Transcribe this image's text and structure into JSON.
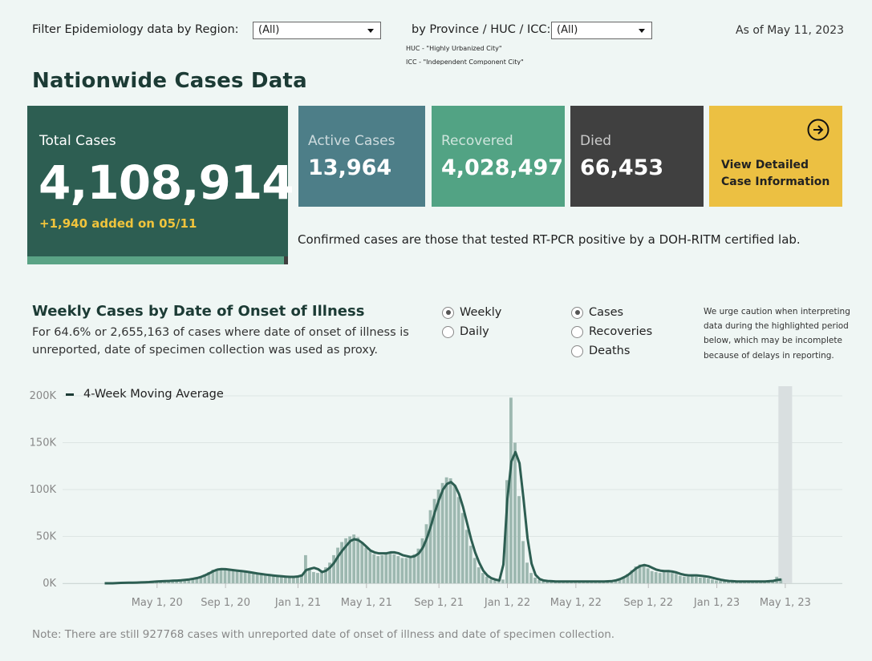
{
  "filters": {
    "region_label": "Filter Epidemiology data by Region:",
    "region_value": "(All)",
    "province_label": "by Province / HUC / ICC:",
    "province_value": "(All)",
    "huc_note": "HUC - \"Highly Urbanized City\"",
    "icc_note": "ICC - \"Independent Component City\""
  },
  "as_of": "As of May 11, 2023",
  "page_title": "Nationwide Cases Data",
  "total": {
    "label": "Total Cases",
    "value": "4,108,914",
    "added": "+1,940 added on 05/11"
  },
  "cards": [
    {
      "label": "Active Cases",
      "value": "13,964",
      "color": "#4d7e88"
    },
    {
      "label": "Recovered",
      "value": "4,028,497",
      "color": "#52a384"
    },
    {
      "label": "Died",
      "value": "66,453",
      "color": "#404040"
    }
  ],
  "cta": {
    "line1": "View Detailed",
    "line2": "Case Information",
    "icon": "arrow-right-circle-icon",
    "color": "#ecc042"
  },
  "confirmed_note": "Confirmed cases are those that tested RT-PCR positive by a DOH-RITM certified lab.",
  "chart_section": {
    "title": "Weekly Cases by Date of Onset of Illness",
    "subtitle": "For 64.6% or 2,655,163 of cases where date of onset of illness is unreported, date of specimen collection was used as proxy.",
    "period_options": [
      {
        "label": "Weekly",
        "selected": true
      },
      {
        "label": "Daily",
        "selected": false
      }
    ],
    "metric_options": [
      {
        "label": "Cases",
        "selected": true
      },
      {
        "label": "Recoveries",
        "selected": false
      },
      {
        "label": "Deaths",
        "selected": false
      }
    ],
    "caution": "We urge caution when interpreting data during the highlighted period below, which may be incomplete because of delays in reporting.",
    "legend": "4-Week Moving Average",
    "footnote": "Note: There are still 927768 cases with unreported date of onset of illness and date of specimen collection."
  },
  "chart_data": {
    "type": "bar",
    "title": "Weekly Cases by Date of Onset of Illness",
    "xlabel": "",
    "ylabel": "",
    "ylim": [
      0,
      200000
    ],
    "yticks": [
      "0K",
      "50K",
      "100K",
      "150K",
      "200K"
    ],
    "ytick_values": [
      0,
      50000,
      100000,
      150000,
      200000
    ],
    "xticks": [
      "May 1, 20",
      "Sep 1, 20",
      "Jan 1, 21",
      "May 1, 21",
      "Sep 1, 21",
      "Jan 1, 22",
      "May 1, 22",
      "Sep 1, 22",
      "Jan 1, 23",
      "May 1, 23"
    ],
    "xtick_week_index": [
      13,
      30,
      48,
      65,
      83,
      100,
      117,
      135,
      152,
      169
    ],
    "bar_color": "#9db8b0",
    "line_color": "#2d5e52",
    "highlight_color": "#d9dfe0",
    "highlight_week_range": [
      168,
      171
    ],
    "series": [
      {
        "name": "Weekly Cases",
        "values": [
          0,
          0,
          0,
          300,
          500,
          600,
          700,
          800,
          900,
          1000,
          1200,
          1500,
          1800,
          2000,
          2200,
          2400,
          2600,
          2800,
          3000,
          3400,
          3800,
          4300,
          5000,
          6000,
          7500,
          9500,
          12000,
          14500,
          15500,
          15000,
          14500,
          14000,
          13500,
          13000,
          12500,
          12000,
          11000,
          10000,
          9500,
          9000,
          8500,
          8000,
          7500,
          7200,
          7000,
          6800,
          6500,
          6800,
          8000,
          9500,
          30000,
          15000,
          12000,
          11000,
          13000,
          17000,
          22000,
          30000,
          38000,
          44000,
          48000,
          50000,
          52000,
          49000,
          44000,
          38000,
          34000,
          31000,
          29000,
          30000,
          31000,
          32000,
          31000,
          29000,
          27000,
          27000,
          28000,
          31000,
          37000,
          48000,
          63000,
          78000,
          90000,
          100000,
          107000,
          113000,
          112000,
          104000,
          92000,
          75000,
          57000,
          40000,
          27000,
          17000,
          11000,
          7000,
          4000,
          3000,
          2000,
          4000,
          110000,
          198000,
          150000,
          93000,
          45000,
          22000,
          11000,
          6000,
          3500,
          2500,
          2000,
          2000,
          2000,
          2000,
          2000,
          2000,
          2000,
          2000,
          2000,
          2000,
          2000,
          2000,
          2000,
          2000,
          2000,
          2000,
          2500,
          3500,
          5000,
          7000,
          10000,
          14000,
          18000,
          20000,
          19000,
          16000,
          13000,
          12000,
          11000,
          12000,
          12000,
          11000,
          10000,
          8000,
          7000,
          7000,
          8000,
          7000,
          6000,
          6000,
          5000,
          4000,
          3000,
          2500,
          2000,
          2000,
          2000,
          2000,
          2000,
          2000,
          2000,
          2000,
          2000,
          2000,
          2000,
          2500,
          3000,
          7000,
          5000
        ]
      },
      {
        "name": "4-Week Moving Average",
        "values": [
          0,
          0,
          0,
          200,
          400,
          500,
          600,
          700,
          800,
          900,
          1100,
          1300,
          1600,
          1900,
          2100,
          2300,
          2500,
          2700,
          2900,
          3200,
          3600,
          4100,
          4800,
          5600,
          6900,
          8600,
          10700,
          13000,
          14600,
          15100,
          15000,
          14500,
          14000,
          13500,
          13000,
          12500,
          11900,
          11100,
          10400,
          9800,
          9200,
          8700,
          8200,
          7800,
          7400,
          7100,
          6800,
          6800,
          7300,
          8400,
          14000,
          15500,
          16500,
          15000,
          12000,
          13500,
          17000,
          22000,
          29000,
          35000,
          40000,
          45000,
          47000,
          46000,
          43000,
          39000,
          35000,
          33000,
          32000,
          32000,
          32000,
          33000,
          33000,
          32000,
          30000,
          29000,
          28000,
          29000,
          32000,
          38000,
          48000,
          61000,
          76000,
          89000,
          100000,
          106000,
          108000,
          104000,
          95000,
          81000,
          64000,
          47000,
          33000,
          22000,
          13500,
          8500,
          5500,
          4000,
          3000,
          20000,
          90000,
          130000,
          140000,
          128000,
          90000,
          48000,
          21000,
          9000,
          4500,
          3000,
          2500,
          2200,
          2000,
          2000,
          2000,
          2000,
          2000,
          2000,
          2000,
          2000,
          2000,
          2000,
          2000,
          2000,
          2000,
          2100,
          2400,
          3200,
          4500,
          6500,
          9000,
          12500,
          16000,
          18500,
          19500,
          18500,
          16500,
          14500,
          13500,
          13000,
          13000,
          12500,
          11500,
          10000,
          9000,
          8500,
          8500,
          8500,
          8000,
          7500,
          6800,
          5800,
          4800,
          3800,
          3000,
          2500,
          2200,
          2000,
          2000,
          2000,
          2000,
          2000,
          2000,
          2000,
          2000,
          2200,
          2600,
          3500,
          4000
        ]
      }
    ]
  }
}
